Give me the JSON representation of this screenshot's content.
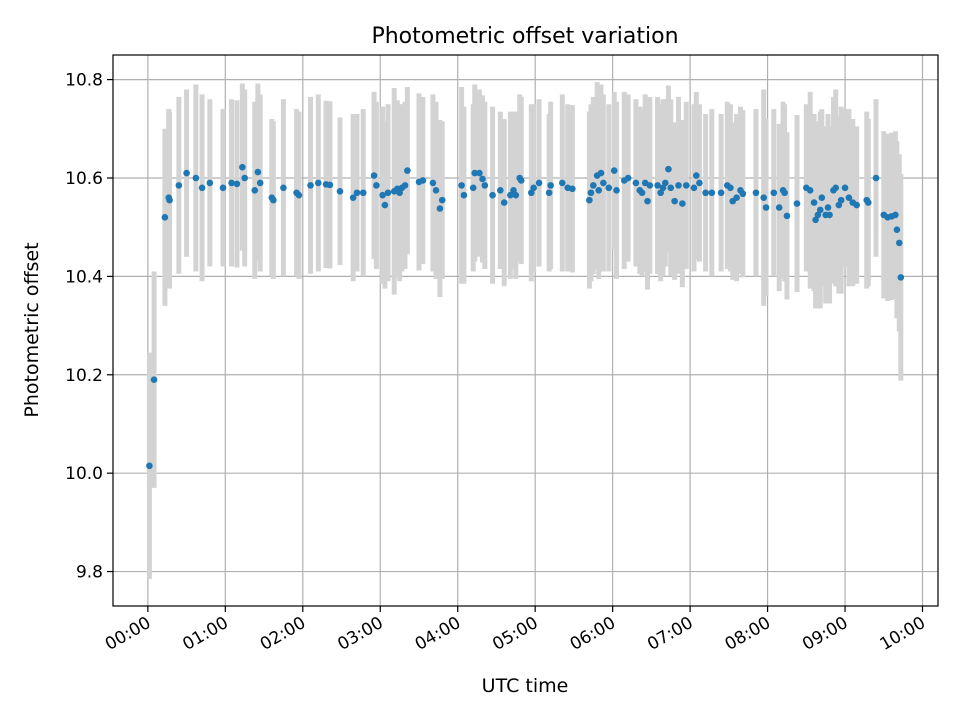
{
  "chart_data": {
    "type": "scatter",
    "title": "Photometric offset variation",
    "xlabel": "UTC time",
    "ylabel": "Photometric offset",
    "x_unit": "hours UTC",
    "xlim": [
      -0.45,
      10.2
    ],
    "ylim": [
      9.73,
      10.85
    ],
    "xticks": [
      0,
      1,
      2,
      3,
      4,
      5,
      6,
      7,
      8,
      9,
      10
    ],
    "xtick_labels": [
      "00:00",
      "01:00",
      "02:00",
      "03:00",
      "04:00",
      "05:00",
      "06:00",
      "07:00",
      "08:00",
      "09:00",
      "10:00"
    ],
    "yticks": [
      9.8,
      10.0,
      10.2,
      10.4,
      10.6,
      10.8
    ],
    "ytick_labels": [
      "9.8",
      "10.0",
      "10.2",
      "10.4",
      "10.6",
      "10.8"
    ],
    "grid": true,
    "legend": "none",
    "colors": {
      "points": "#1f77b4",
      "errorbars": "#d3d3d3",
      "grid": "#b0b0b0",
      "axes": "#000000"
    },
    "series": [
      {
        "points": [
          [
            0.02,
            10.015,
            0.23
          ],
          [
            0.08,
            10.19,
            0.22
          ],
          [
            0.22,
            10.52,
            0.18
          ],
          [
            0.27,
            10.56,
            0.18
          ],
          [
            0.28,
            10.555,
            0.18
          ],
          [
            0.4,
            10.585,
            0.18
          ],
          [
            0.5,
            10.61,
            0.17
          ],
          [
            0.62,
            10.6,
            0.19
          ],
          [
            0.7,
            10.58,
            0.19
          ],
          [
            0.8,
            10.59,
            0.17
          ],
          [
            0.97,
            10.58,
            0.16
          ],
          [
            1.08,
            10.59,
            0.17
          ],
          [
            1.15,
            10.588,
            0.17
          ],
          [
            1.22,
            10.622,
            0.17
          ],
          [
            1.25,
            10.6,
            0.18
          ],
          [
            1.38,
            10.575,
            0.18
          ],
          [
            1.42,
            10.612,
            0.18
          ],
          [
            1.45,
            10.59,
            0.18
          ],
          [
            1.6,
            10.56,
            0.16
          ],
          [
            1.62,
            10.555,
            0.16
          ],
          [
            1.75,
            10.58,
            0.18
          ],
          [
            1.92,
            10.57,
            0.17
          ],
          [
            1.95,
            10.565,
            0.17
          ],
          [
            2.1,
            10.585,
            0.18
          ],
          [
            2.2,
            10.59,
            0.18
          ],
          [
            2.3,
            10.587,
            0.17
          ],
          [
            2.35,
            10.586,
            0.17
          ],
          [
            2.48,
            10.573,
            0.15
          ],
          [
            2.65,
            10.56,
            0.17
          ],
          [
            2.7,
            10.57,
            0.16
          ],
          [
            2.78,
            10.57,
            0.17
          ],
          [
            2.92,
            10.605,
            0.17
          ],
          [
            2.95,
            10.585,
            0.17
          ],
          [
            3.03,
            10.565,
            0.18
          ],
          [
            3.06,
            10.545,
            0.17
          ],
          [
            3.1,
            10.57,
            0.18
          ],
          [
            3.18,
            10.573,
            0.21
          ],
          [
            3.22,
            10.578,
            0.18
          ],
          [
            3.25,
            10.57,
            0.18
          ],
          [
            3.28,
            10.58,
            0.17
          ],
          [
            3.32,
            10.585,
            0.17
          ],
          [
            3.35,
            10.615,
            0.17
          ],
          [
            3.5,
            10.592,
            0.18
          ],
          [
            3.55,
            10.595,
            0.17
          ],
          [
            3.68,
            10.59,
            0.18
          ],
          [
            3.72,
            10.575,
            0.18
          ],
          [
            3.77,
            10.538,
            0.18
          ],
          [
            3.8,
            10.555,
            0.16
          ],
          [
            4.05,
            10.585,
            0.2
          ],
          [
            4.08,
            10.565,
            0.18
          ],
          [
            4.2,
            10.58,
            0.17
          ],
          [
            4.22,
            10.61,
            0.18
          ],
          [
            4.28,
            10.61,
            0.17
          ],
          [
            4.32,
            10.598,
            0.17
          ],
          [
            4.35,
            10.585,
            0.17
          ],
          [
            4.45,
            10.565,
            0.18
          ],
          [
            4.55,
            10.575,
            0.16
          ],
          [
            4.6,
            10.55,
            0.17
          ],
          [
            4.68,
            10.565,
            0.17
          ],
          [
            4.72,
            10.575,
            0.16
          ],
          [
            4.75,
            10.565,
            0.17
          ],
          [
            4.8,
            10.6,
            0.17
          ],
          [
            4.82,
            10.595,
            0.17
          ],
          [
            4.95,
            10.57,
            0.18
          ],
          [
            4.98,
            10.58,
            0.17
          ],
          [
            5.05,
            10.59,
            0.17
          ],
          [
            5.18,
            10.57,
            0.16
          ],
          [
            5.2,
            10.585,
            0.17
          ],
          [
            5.35,
            10.59,
            0.18
          ],
          [
            5.42,
            10.58,
            0.17
          ],
          [
            5.48,
            10.578,
            0.17
          ],
          [
            5.7,
            10.555,
            0.18
          ],
          [
            5.72,
            10.57,
            0.18
          ],
          [
            5.75,
            10.585,
            0.18
          ],
          [
            5.8,
            10.605,
            0.19
          ],
          [
            5.82,
            10.575,
            0.18
          ],
          [
            5.85,
            10.61,
            0.18
          ],
          [
            5.88,
            10.59,
            0.18
          ],
          [
            5.95,
            10.58,
            0.17
          ],
          [
            6.02,
            10.615,
            0.16
          ],
          [
            6.05,
            10.575,
            0.18
          ],
          [
            6.15,
            10.595,
            0.18
          ],
          [
            6.2,
            10.6,
            0.17
          ],
          [
            6.3,
            10.59,
            0.17
          ],
          [
            6.35,
            10.575,
            0.17
          ],
          [
            6.38,
            10.57,
            0.17
          ],
          [
            6.42,
            10.59,
            0.18
          ],
          [
            6.45,
            10.553,
            0.18
          ],
          [
            6.48,
            10.585,
            0.18
          ],
          [
            6.58,
            10.585,
            0.18
          ],
          [
            6.62,
            10.57,
            0.18
          ],
          [
            6.65,
            10.58,
            0.18
          ],
          [
            6.68,
            10.59,
            0.17
          ],
          [
            6.72,
            10.618,
            0.17
          ],
          [
            6.75,
            10.58,
            0.18
          ],
          [
            6.8,
            10.553,
            0.16
          ],
          [
            6.85,
            10.585,
            0.18
          ],
          [
            6.9,
            10.548,
            0.17
          ],
          [
            6.95,
            10.585,
            0.17
          ],
          [
            7.05,
            10.58,
            0.17
          ],
          [
            7.08,
            10.605,
            0.17
          ],
          [
            7.12,
            10.59,
            0.16
          ],
          [
            7.2,
            10.57,
            0.16
          ],
          [
            7.28,
            10.57,
            0.17
          ],
          [
            7.4,
            10.57,
            0.16
          ],
          [
            7.48,
            10.585,
            0.17
          ],
          [
            7.52,
            10.58,
            0.17
          ],
          [
            7.55,
            10.553,
            0.16
          ],
          [
            7.6,
            10.56,
            0.17
          ],
          [
            7.65,
            10.575,
            0.17
          ],
          [
            7.68,
            10.568,
            0.17
          ],
          [
            7.85,
            10.57,
            0.17
          ],
          [
            7.95,
            10.56,
            0.22
          ],
          [
            7.98,
            10.54,
            0.18
          ],
          [
            8.08,
            10.57,
            0.17
          ],
          [
            8.15,
            10.54,
            0.17
          ],
          [
            8.2,
            10.575,
            0.18
          ],
          [
            8.22,
            10.57,
            0.18
          ],
          [
            8.25,
            10.523,
            0.17
          ],
          [
            8.38,
            10.548,
            0.18
          ],
          [
            8.5,
            10.58,
            0.17
          ],
          [
            8.55,
            10.575,
            0.2
          ],
          [
            8.6,
            10.55,
            0.18
          ],
          [
            8.62,
            10.515,
            0.18
          ],
          [
            8.65,
            10.525,
            0.19
          ],
          [
            8.68,
            10.535,
            0.2
          ],
          [
            8.7,
            10.56,
            0.18
          ],
          [
            8.75,
            10.525,
            0.18
          ],
          [
            8.78,
            10.54,
            0.19
          ],
          [
            8.8,
            10.525,
            0.18
          ],
          [
            8.85,
            10.575,
            0.19
          ],
          [
            8.88,
            10.58,
            0.2
          ],
          [
            8.92,
            10.545,
            0.18
          ],
          [
            8.95,
            10.555,
            0.19
          ],
          [
            9.0,
            10.58,
            0.16
          ],
          [
            9.05,
            10.56,
            0.18
          ],
          [
            9.1,
            10.55,
            0.17
          ],
          [
            9.15,
            10.545,
            0.16
          ],
          [
            9.28,
            10.555,
            0.18
          ],
          [
            9.3,
            10.55,
            0.17
          ],
          [
            9.4,
            10.6,
            0.16
          ],
          [
            9.5,
            10.525,
            0.17
          ],
          [
            9.55,
            10.52,
            0.17
          ],
          [
            9.6,
            10.522,
            0.17
          ],
          [
            9.65,
            10.525,
            0.17
          ],
          [
            9.67,
            10.495,
            0.18
          ],
          [
            9.7,
            10.468,
            0.18
          ],
          [
            9.72,
            10.398,
            0.21
          ]
        ]
      }
    ]
  }
}
